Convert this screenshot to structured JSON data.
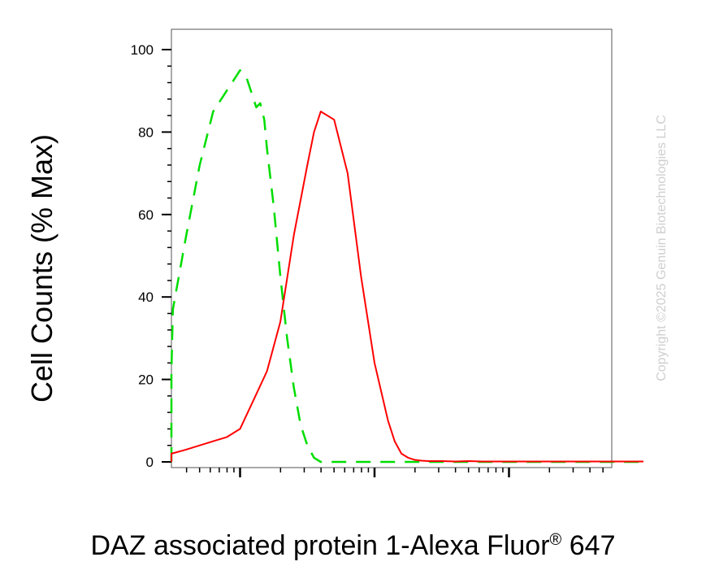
{
  "chart_data": {
    "type": "line",
    "ylabel": "Cell Counts (% Max)",
    "xlabel_main": "DAZ associated protein 1-Alexa Fluor",
    "xlabel_sup": "®",
    "xlabel_tail": "647",
    "xscale": "log",
    "xlim": [
      0,
      4
    ],
    "ylim": [
      0,
      100
    ],
    "yticks": [
      0,
      20,
      40,
      60,
      80,
      100
    ],
    "ytick_labels": [
      "0",
      "20",
      "40",
      "60",
      "80",
      "100"
    ],
    "grid": false,
    "series": [
      {
        "color": "#00dd00",
        "dash": true,
        "x": [
          0.0,
          0.1,
          0.2,
          0.3,
          0.4,
          0.5,
          0.6,
          0.7,
          0.8,
          0.9,
          1.0,
          1.05,
          1.1,
          1.12,
          1.15,
          1.18,
          1.2,
          1.25,
          1.3,
          1.35,
          1.4,
          1.45,
          1.5,
          1.55,
          1.6,
          1.7,
          1.8,
          2.0,
          2.5,
          3.0,
          4.0
        ],
        "y": [
          0,
          1,
          5,
          12,
          22,
          37,
          55,
          72,
          85,
          90,
          95,
          93,
          88,
          86,
          87,
          83,
          76,
          62,
          45,
          30,
          18,
          9,
          4,
          1,
          0,
          0,
          0,
          0,
          0,
          0,
          0
        ]
      },
      {
        "color": "#ff0000",
        "dash": false,
        "x": [
          0.0,
          0.2,
          0.4,
          0.6,
          0.8,
          0.9,
          1.0,
          1.1,
          1.2,
          1.3,
          1.4,
          1.5,
          1.55,
          1.6,
          1.7,
          1.8,
          1.9,
          2.0,
          2.1,
          2.15,
          2.2,
          2.25,
          2.3,
          2.35,
          2.4,
          2.5,
          2.6,
          2.7,
          2.8,
          2.9,
          3.0,
          3.2,
          3.4,
          3.6,
          3.8,
          4.0
        ],
        "y": [
          0,
          1,
          2,
          3,
          5,
          6,
          8,
          15,
          22,
          34,
          55,
          72,
          80,
          85,
          83,
          70,
          45,
          24,
          10,
          5,
          2,
          1,
          0.5,
          0.3,
          0.2,
          0.2,
          0.1,
          0.2,
          0.1,
          0.1,
          0.1,
          0.1,
          0.1,
          0.1,
          0.1,
          0.1
        ]
      }
    ]
  },
  "copyright": "Copyright ©2025 Genuin Biotechnologies LLC"
}
